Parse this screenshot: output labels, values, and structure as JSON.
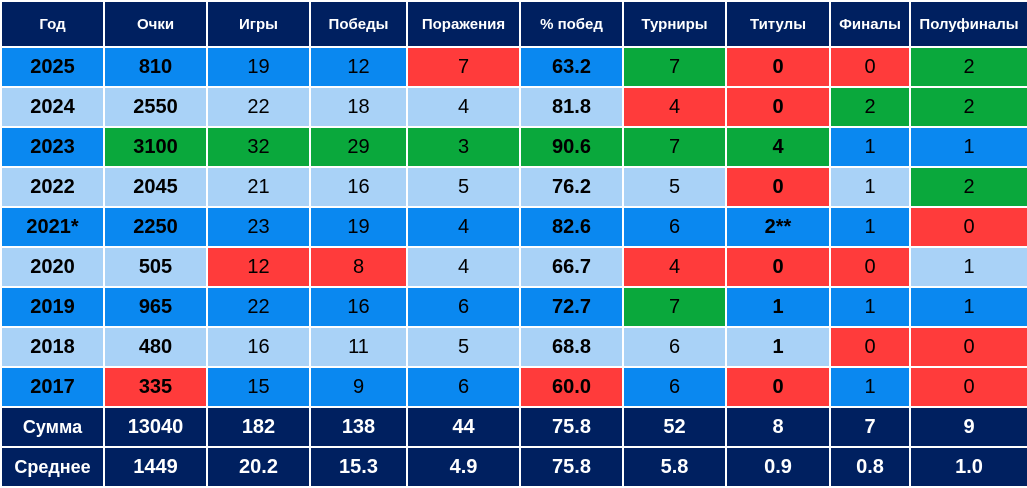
{
  "colors": {
    "header_bg": "#002060",
    "row_dark": "#0a88f0",
    "row_light": "#a9d2f7",
    "bad": "#ff3b3b",
    "good": "#0aa83c"
  },
  "headers": [
    "Год",
    "Очки",
    "Игры",
    "Победы",
    "Поражения",
    "% побед",
    "Турниры",
    "Титулы",
    "Финалы",
    "Полуфиналы"
  ],
  "rows": [
    {
      "band": "dk",
      "cells": [
        {
          "v": "2025",
          "b": true
        },
        {
          "v": "810",
          "b": true
        },
        {
          "v": "19"
        },
        {
          "v": "12"
        },
        {
          "v": "7",
          "hl": "red"
        },
        {
          "v": "63.2",
          "b": true
        },
        {
          "v": "7",
          "hl": "green"
        },
        {
          "v": "0",
          "b": true,
          "hl": "red"
        },
        {
          "v": "0",
          "hl": "red"
        },
        {
          "v": "2",
          "hl": "green"
        }
      ]
    },
    {
      "band": "lt",
      "cells": [
        {
          "v": "2024",
          "b": true
        },
        {
          "v": "2550",
          "b": true
        },
        {
          "v": "22"
        },
        {
          "v": "18"
        },
        {
          "v": "4"
        },
        {
          "v": "81.8",
          "b": true
        },
        {
          "v": "4",
          "hl": "red"
        },
        {
          "v": "0",
          "b": true,
          "hl": "red"
        },
        {
          "v": "2",
          "hl": "green"
        },
        {
          "v": "2",
          "hl": "green"
        }
      ]
    },
    {
      "band": "dk",
      "cells": [
        {
          "v": "2023",
          "b": true
        },
        {
          "v": "3100",
          "b": true,
          "hl": "green"
        },
        {
          "v": "32",
          "hl": "green"
        },
        {
          "v": "29",
          "hl": "green"
        },
        {
          "v": "3",
          "hl": "green"
        },
        {
          "v": "90.6",
          "b": true,
          "hl": "green"
        },
        {
          "v": "7",
          "hl": "green"
        },
        {
          "v": "4",
          "b": true,
          "hl": "green"
        },
        {
          "v": "1"
        },
        {
          "v": "1"
        }
      ]
    },
    {
      "band": "lt",
      "cells": [
        {
          "v": "2022",
          "b": true
        },
        {
          "v": "2045",
          "b": true
        },
        {
          "v": "21"
        },
        {
          "v": "16"
        },
        {
          "v": "5"
        },
        {
          "v": "76.2",
          "b": true
        },
        {
          "v": "5"
        },
        {
          "v": "0",
          "b": true,
          "hl": "red"
        },
        {
          "v": "1"
        },
        {
          "v": "2",
          "hl": "green"
        }
      ]
    },
    {
      "band": "dk",
      "cells": [
        {
          "v": "2021*",
          "b": true
        },
        {
          "v": "2250",
          "b": true
        },
        {
          "v": "23"
        },
        {
          "v": "19"
        },
        {
          "v": "4"
        },
        {
          "v": "82.6",
          "b": true
        },
        {
          "v": "6"
        },
        {
          "v": "2**",
          "b": true
        },
        {
          "v": "1"
        },
        {
          "v": "0",
          "hl": "red"
        }
      ]
    },
    {
      "band": "lt",
      "cells": [
        {
          "v": "2020",
          "b": true
        },
        {
          "v": "505",
          "b": true
        },
        {
          "v": "12",
          "hl": "red"
        },
        {
          "v": "8",
          "hl": "red"
        },
        {
          "v": "4"
        },
        {
          "v": "66.7",
          "b": true
        },
        {
          "v": "4",
          "hl": "red"
        },
        {
          "v": "0",
          "b": true,
          "hl": "red"
        },
        {
          "v": "0",
          "hl": "red"
        },
        {
          "v": "1"
        }
      ]
    },
    {
      "band": "dk",
      "cells": [
        {
          "v": "2019",
          "b": true
        },
        {
          "v": "965",
          "b": true
        },
        {
          "v": "22"
        },
        {
          "v": "16"
        },
        {
          "v": "6"
        },
        {
          "v": "72.7",
          "b": true
        },
        {
          "v": "7",
          "hl": "green"
        },
        {
          "v": "1",
          "b": true
        },
        {
          "v": "1"
        },
        {
          "v": "1"
        }
      ]
    },
    {
      "band": "lt",
      "cells": [
        {
          "v": "2018",
          "b": true
        },
        {
          "v": "480",
          "b": true
        },
        {
          "v": "16"
        },
        {
          "v": "11"
        },
        {
          "v": "5"
        },
        {
          "v": "68.8",
          "b": true
        },
        {
          "v": "6"
        },
        {
          "v": "1",
          "b": true
        },
        {
          "v": "0",
          "hl": "red"
        },
        {
          "v": "0",
          "hl": "red"
        }
      ]
    },
    {
      "band": "dk",
      "cells": [
        {
          "v": "2017",
          "b": true
        },
        {
          "v": "335",
          "b": true,
          "hl": "red"
        },
        {
          "v": "15"
        },
        {
          "v": "9"
        },
        {
          "v": "6"
        },
        {
          "v": "60.0",
          "b": true,
          "hl": "red"
        },
        {
          "v": "6"
        },
        {
          "v": "0",
          "b": true,
          "hl": "red"
        },
        {
          "v": "1"
        },
        {
          "v": "0",
          "hl": "red"
        }
      ]
    }
  ],
  "totals": [
    [
      "Сумма",
      "13040",
      "182",
      "138",
      "44",
      "75.8",
      "52",
      "8",
      "7",
      "9"
    ],
    [
      "Среднее",
      "1449",
      "20.2",
      "15.3",
      "4.9",
      "75.8",
      "5.8",
      "0.9",
      "0.8",
      "1.0"
    ]
  ]
}
